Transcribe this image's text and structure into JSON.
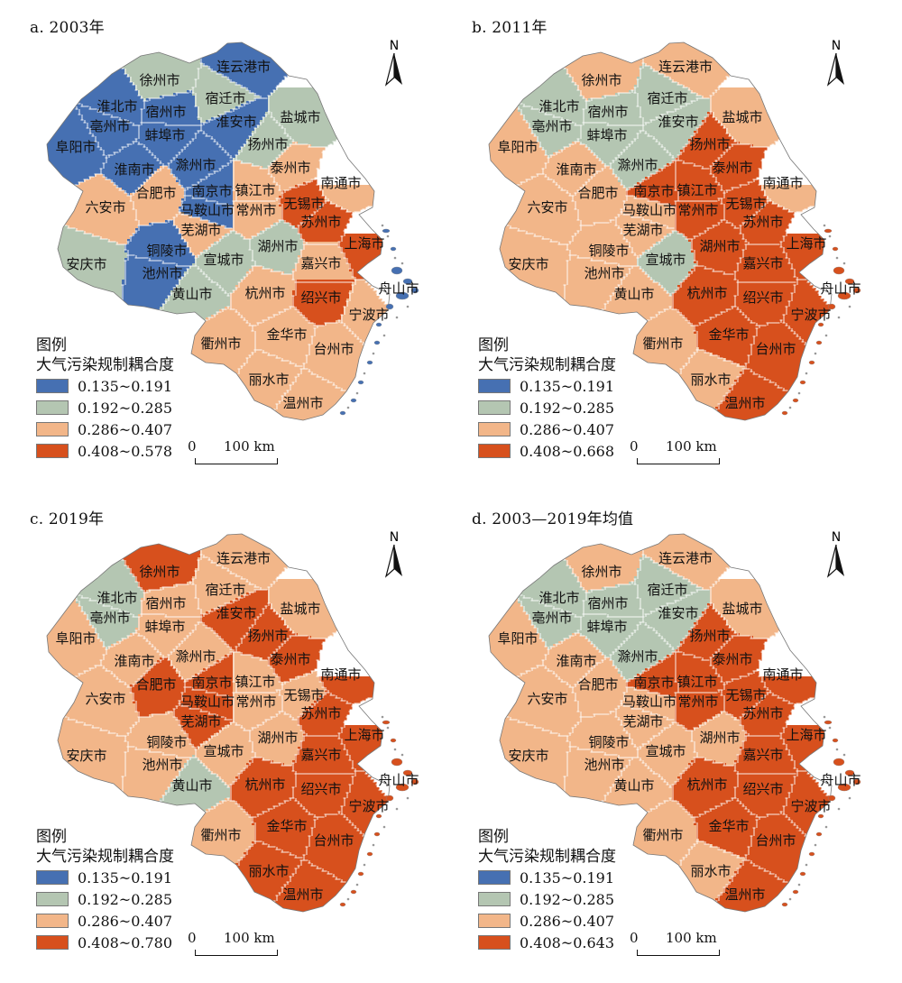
{
  "colors": {
    "c1": "#4670b2",
    "c2": "#b4c6b2",
    "c3": "#f2b689",
    "c4": "#d7501d"
  },
  "legend_title": "图例",
  "legend_subtitle": "大气污染规制耦合度",
  "north_label": "N",
  "scale": {
    "zero": "0",
    "label": "100 km"
  },
  "cities": [
    "连云港市",
    "徐州市",
    "宿迁市",
    "淮北市",
    "宿州市",
    "盐城市",
    "亳州市",
    "淮安市",
    "蚌埠市",
    "阜阳市",
    "扬州市",
    "淮南市",
    "滁州市",
    "泰州市",
    "南通市",
    "合肥市",
    "南京市",
    "镇江市",
    "六安市",
    "马鞍山市",
    "常州市",
    "无锡市",
    "苏州市",
    "芜湖市",
    "上海市",
    "铜陵市",
    "湖州市",
    "安庆市",
    "宣城市",
    "池州市",
    "嘉兴市",
    "舟山市",
    "黄山市",
    "杭州市",
    "绍兴市",
    "宁波市",
    "衢州市",
    "金华市",
    "台州市",
    "丽水市",
    "温州市"
  ],
  "panels": [
    {
      "title": "a. 2003年",
      "legend": [
        "0.135~0.191",
        "0.192~0.285",
        "0.286~0.407",
        "0.408~0.578"
      ],
      "classes": {
        "连云港市": 1,
        "徐州市": 2,
        "宿迁市": 2,
        "淮北市": 1,
        "宿州市": 1,
        "盐城市": 2,
        "亳州市": 1,
        "淮安市": 1,
        "蚌埠市": 1,
        "阜阳市": 1,
        "扬州市": 2,
        "淮南市": 1,
        "滁州市": 1,
        "泰州市": 3,
        "南通市": 3,
        "合肥市": 3,
        "南京市": 1,
        "镇江市": 3,
        "六安市": 3,
        "马鞍山市": 1,
        "常州市": 3,
        "无锡市": 4,
        "苏州市": 4,
        "芜湖市": 3,
        "上海市": 4,
        "铜陵市": 1,
        "湖州市": 2,
        "安庆市": 2,
        "宣城市": 2,
        "池州市": 1,
        "嘉兴市": 3,
        "舟山市": 1,
        "黄山市": 2,
        "杭州市": 3,
        "绍兴市": 4,
        "宁波市": 3,
        "衢州市": 3,
        "金华市": 3,
        "台州市": 3,
        "丽水市": 3,
        "温州市": 3
      }
    },
    {
      "title": "b. 2011年",
      "legend": [
        "0.135~0.191",
        "0.192~0.285",
        "0.286~0.407",
        "0.408~0.668"
      ],
      "classes": {
        "连云港市": 3,
        "徐州市": 3,
        "宿迁市": 2,
        "淮北市": 2,
        "宿州市": 2,
        "盐城市": 3,
        "亳州市": 2,
        "淮安市": 2,
        "蚌埠市": 2,
        "阜阳市": 3,
        "扬州市": 4,
        "淮南市": 3,
        "滁州市": 2,
        "泰州市": 4,
        "南通市": 3,
        "合肥市": 3,
        "南京市": 4,
        "镇江市": 4,
        "六安市": 3,
        "马鞍山市": 3,
        "常州市": 4,
        "无锡市": 4,
        "苏州市": 4,
        "芜湖市": 3,
        "上海市": 4,
        "铜陵市": 3,
        "湖州市": 4,
        "安庆市": 3,
        "宣城市": 2,
        "池州市": 3,
        "嘉兴市": 4,
        "舟山市": 4,
        "黄山市": 3,
        "杭州市": 4,
        "绍兴市": 4,
        "宁波市": 4,
        "衢州市": 3,
        "金华市": 4,
        "台州市": 4,
        "丽水市": 3,
        "温州市": 4
      }
    },
    {
      "title": "c. 2019年",
      "legend": [
        "0.135~0.191",
        "0.192~0.285",
        "0.286~0.407",
        "0.408~0.780"
      ],
      "classes": {
        "连云港市": 3,
        "徐州市": 4,
        "宿迁市": 3,
        "淮北市": 2,
        "宿州市": 3,
        "盐城市": 3,
        "亳州市": 2,
        "淮安市": 4,
        "蚌埠市": 3,
        "阜阳市": 3,
        "扬州市": 4,
        "淮南市": 3,
        "滁州市": 3,
        "泰州市": 4,
        "南通市": 4,
        "合肥市": 4,
        "南京市": 4,
        "镇江市": 3,
        "六安市": 3,
        "马鞍山市": 4,
        "常州市": 3,
        "无锡市": 3,
        "苏州市": 4,
        "芜湖市": 4,
        "上海市": 4,
        "铜陵市": 3,
        "湖州市": 3,
        "安庆市": 3,
        "宣城市": 3,
        "池州市": 3,
        "嘉兴市": 4,
        "舟山市": 4,
        "黄山市": 2,
        "杭州市": 4,
        "绍兴市": 4,
        "宁波市": 4,
        "衢州市": 3,
        "金华市": 4,
        "台州市": 4,
        "丽水市": 4,
        "温州市": 4
      }
    },
    {
      "title": "d. 2003—2019年均值",
      "legend": [
        "0.135~0.191",
        "0.192~0.285",
        "0.286~0.407",
        "0.408~0.643"
      ],
      "classes": {
        "连云港市": 3,
        "徐州市": 3,
        "宿迁市": 2,
        "淮北市": 2,
        "宿州市": 2,
        "盐城市": 3,
        "亳州市": 2,
        "淮安市": 2,
        "蚌埠市": 2,
        "阜阳市": 3,
        "扬州市": 4,
        "淮南市": 3,
        "滁州市": 2,
        "泰州市": 4,
        "南通市": 4,
        "合肥市": 3,
        "南京市": 4,
        "镇江市": 4,
        "六安市": 3,
        "马鞍山市": 3,
        "常州市": 4,
        "无锡市": 4,
        "苏州市": 4,
        "芜湖市": 3,
        "上海市": 4,
        "铜陵市": 3,
        "湖州市": 3,
        "安庆市": 3,
        "宣城市": 3,
        "池州市": 3,
        "嘉兴市": 4,
        "舟山市": 4,
        "黄山市": 3,
        "杭州市": 4,
        "绍兴市": 4,
        "宁波市": 4,
        "衢州市": 3,
        "金华市": 4,
        "台州市": 4,
        "丽水市": 3,
        "温州市": 4
      }
    }
  ]
}
